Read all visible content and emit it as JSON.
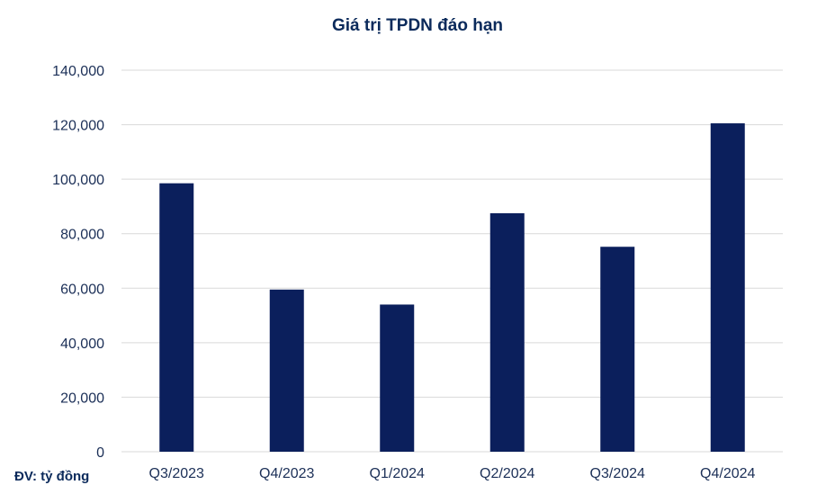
{
  "chart_data": {
    "type": "bar",
    "title": "Giá trị TPDN đáo hạn",
    "unit_note": "ĐV: tỷ đồng",
    "categories": [
      "Q3/2023",
      "Q4/2023",
      "Q1/2024",
      "Q2/2024",
      "Q3/2024",
      "Q4/2024"
    ],
    "values": [
      98500,
      59500,
      54000,
      87500,
      75200,
      120500
    ],
    "ylim": [
      0,
      140000
    ],
    "yticks": [
      0,
      20000,
      40000,
      60000,
      80000,
      100000,
      120000,
      140000
    ],
    "ytick_labels": [
      "0",
      "20,000",
      "40,000",
      "60,000",
      "80,000",
      "100,000",
      "120,000",
      "140,000"
    ],
    "grid": true,
    "bar_color": "#0b1f5c",
    "grid_color": "#d9d9d9"
  }
}
